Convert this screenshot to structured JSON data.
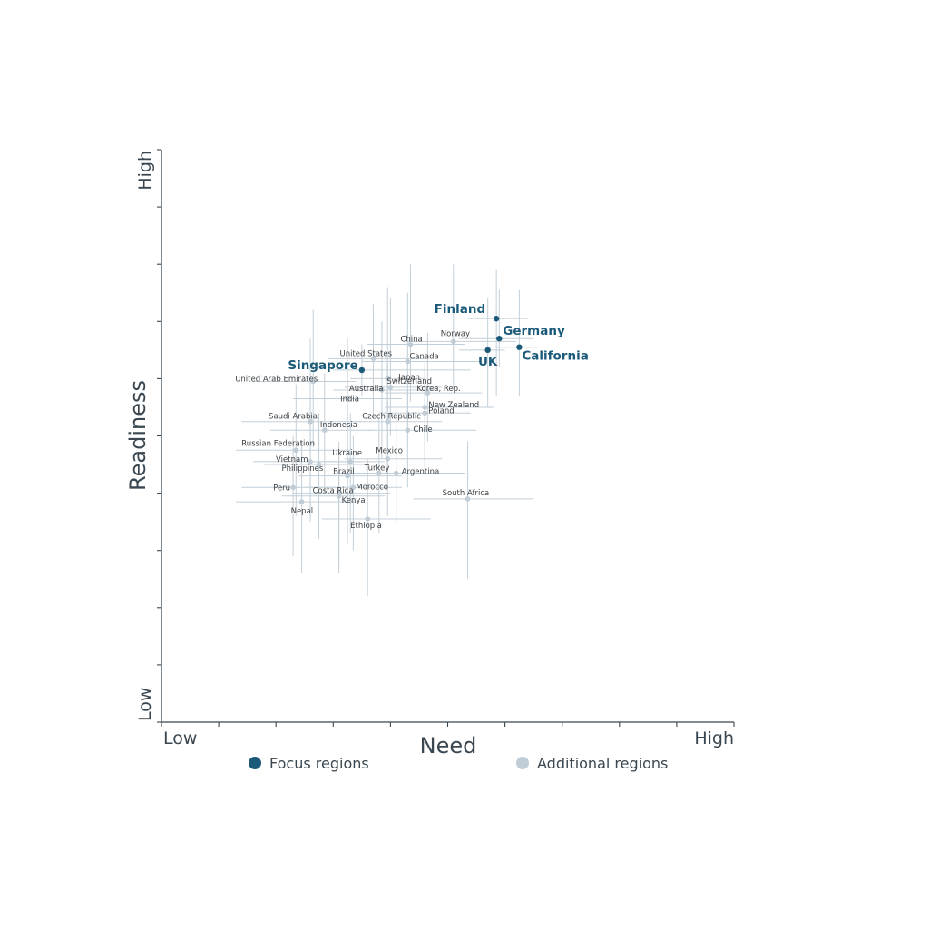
{
  "chart_data": {
    "type": "scatter",
    "title": "",
    "xlabel": "Need",
    "ylabel": "Readiness",
    "x_end_labels": {
      "low": "Low",
      "high": "High"
    },
    "y_end_labels": {
      "low": "Low",
      "high": "High"
    },
    "xlim": [
      0,
      10
    ],
    "ylim": [
      0,
      10
    ],
    "grid": false,
    "legend": {
      "placement": "bottom",
      "entries": [
        {
          "name": "Focus regions",
          "color": "#1b5a78"
        },
        {
          "name": "Additional regions",
          "color": "#c0ccd6"
        }
      ]
    },
    "series": [
      {
        "name": "Focus regions",
        "color": "#1b5a78",
        "points": [
          {
            "label": "Finland",
            "x": 5.85,
            "y": 7.05,
            "x_err": [
              5.35,
              6.4
            ],
            "y_err": [
              5.7,
              7.9
            ]
          },
          {
            "label": "Germany",
            "x": 5.9,
            "y": 6.7,
            "x_err": [
              5.2,
              6.5
            ],
            "y_err": [
              6.2,
              7.55
            ]
          },
          {
            "label": "California",
            "x": 6.25,
            "y": 6.55,
            "x_err": [
              5.85,
              6.6
            ],
            "y_err": [
              5.7,
              7.55
            ]
          },
          {
            "label": "UK",
            "x": 5.7,
            "y": 6.5,
            "x_err": [
              5.2,
              6.0
            ],
            "y_err": [
              5.5,
              7.4
            ]
          },
          {
            "label": "Singapore",
            "x": 3.5,
            "y": 6.15,
            "x_err": [
              3.0,
              5.4
            ],
            "y_err": [
              5.7,
              6.6
            ]
          }
        ]
      },
      {
        "name": "Additional regions",
        "color": "#c0ccd6",
        "points": [
          {
            "label": "Norway",
            "x": 5.1,
            "y": 6.65,
            "x_err": [
              4.3,
              6.2
            ],
            "y_err": [
              5.8,
              8.0
            ]
          },
          {
            "label": "China",
            "x": 4.35,
            "y": 6.6,
            "x_err": [
              3.6,
              5.3
            ],
            "y_err": [
              5.6,
              8.0
            ]
          },
          {
            "label": "Canada",
            "x": 4.3,
            "y": 6.3,
            "x_err": [
              3.5,
              5.6
            ],
            "y_err": [
              5.2,
              7.5
            ]
          },
          {
            "label": "United States",
            "x": 3.7,
            "y": 6.35,
            "x_err": [
              2.9,
              4.6
            ],
            "y_err": [
              5.3,
              7.3
            ]
          },
          {
            "label": "Japan",
            "x": 3.95,
            "y": 6.0,
            "x_err": [
              3.3,
              4.6
            ],
            "y_err": [
              5.2,
              7.6
            ]
          },
          {
            "label": "Switzerland",
            "x": 4.0,
            "y": 5.85,
            "x_err": [
              3.2,
              4.9
            ],
            "y_err": [
              5.0,
              7.4
            ]
          },
          {
            "label": "Australia",
            "x": 3.85,
            "y": 5.8,
            "x_err": [
              3.0,
              4.8
            ],
            "y_err": [
              4.6,
              7.0
            ]
          },
          {
            "label": "Korea, Rep.",
            "x": 4.65,
            "y": 5.75,
            "x_err": [
              3.9,
              5.6
            ],
            "y_err": [
              4.9,
              6.8
            ]
          },
          {
            "label": "United Arab Emirates",
            "x": 2.65,
            "y": 5.95,
            "x_err": [
              1.6,
              3.4
            ],
            "y_err": [
              4.8,
              7.2
            ]
          },
          {
            "label": "India",
            "x": 3.25,
            "y": 5.65,
            "x_err": [
              2.3,
              4.2
            ],
            "y_err": [
              4.3,
              6.7
            ]
          },
          {
            "label": "New Zealand",
            "x": 4.6,
            "y": 5.5,
            "x_err": [
              3.9,
              5.8
            ],
            "y_err": [
              4.5,
              6.3
            ]
          },
          {
            "label": "Poland",
            "x": 4.6,
            "y": 5.4,
            "x_err": [
              3.8,
              5.4
            ],
            "y_err": [
              4.3,
              6.2
            ]
          },
          {
            "label": "Saudi Arabia",
            "x": 2.6,
            "y": 5.25,
            "x_err": [
              1.4,
              3.5
            ],
            "y_err": [
              3.6,
              6.7
            ]
          },
          {
            "label": "Czech Republic",
            "x": 3.95,
            "y": 5.25,
            "x_err": [
              3.3,
              4.9
            ],
            "y_err": [
              4.3,
              6.3
            ]
          },
          {
            "label": "Indonesia",
            "x": 2.85,
            "y": 5.1,
            "x_err": [
              1.9,
              3.7
            ],
            "y_err": [
              4.0,
              6.1
            ]
          },
          {
            "label": "Chile",
            "x": 4.3,
            "y": 5.1,
            "x_err": [
              3.6,
              5.5
            ],
            "y_err": [
              4.1,
              5.8
            ]
          },
          {
            "label": "Russian Federation",
            "x": 2.35,
            "y": 4.75,
            "x_err": [
              1.3,
              3.3
            ],
            "y_err": [
              3.6,
              5.9
            ]
          },
          {
            "label": "Ukraine",
            "x": 3.3,
            "y": 4.55,
            "x_err": [
              2.6,
              3.9
            ],
            "y_err": [
              3.3,
              5.4
            ]
          },
          {
            "label": "Mexico",
            "x": 3.95,
            "y": 4.6,
            "x_err": [
              3.2,
              4.9
            ],
            "y_err": [
              3.6,
              5.6
            ]
          },
          {
            "label": "Vietnam",
            "x": 2.6,
            "y": 4.55,
            "x_err": [
              1.6,
              3.5
            ],
            "y_err": [
              3.5,
              5.6
            ]
          },
          {
            "label": "Philippines",
            "x": 2.75,
            "y": 4.5,
            "x_err": [
              1.8,
              3.6
            ],
            "y_err": [
              3.2,
              5.4
            ]
          },
          {
            "label": "Brazil",
            "x": 3.25,
            "y": 4.3,
            "x_err": [
              2.4,
              4.2
            ],
            "y_err": [
              3.1,
              5.5
            ]
          },
          {
            "label": "Turkey",
            "x": 3.8,
            "y": 4.35,
            "x_err": [
              3.1,
              4.6
            ],
            "y_err": [
              3.3,
              5.3
            ]
          },
          {
            "label": "Argentina",
            "x": 4.1,
            "y": 4.35,
            "x_err": [
              3.3,
              5.3
            ],
            "y_err": [
              3.5,
              5.5
            ]
          },
          {
            "label": "Morocco",
            "x": 3.35,
            "y": 4.1,
            "x_err": [
              2.5,
              4.2
            ],
            "y_err": [
              3.0,
              5.0
            ]
          },
          {
            "label": "Peru",
            "x": 2.3,
            "y": 4.1,
            "x_err": [
              1.4,
              3.2
            ],
            "y_err": [
              2.9,
              5.0
            ]
          },
          {
            "label": "Costa Rica",
            "x": 3.1,
            "y": 4.0,
            "x_err": [
              2.3,
              4.0
            ],
            "y_err": [
              2.8,
              4.9
            ]
          },
          {
            "label": "Kenya",
            "x": 3.1,
            "y": 3.95,
            "x_err": [
              2.1,
              3.9
            ],
            "y_err": [
              2.6,
              4.8
            ]
          },
          {
            "label": "Nepal",
            "x": 2.45,
            "y": 3.85,
            "x_err": [
              1.3,
              3.4
            ],
            "y_err": [
              2.6,
              4.9
            ]
          },
          {
            "label": "South Africa",
            "x": 5.35,
            "y": 3.9,
            "x_err": [
              4.4,
              6.5
            ],
            "y_err": [
              2.5,
              4.9
            ]
          },
          {
            "label": "Ethiopia",
            "x": 3.6,
            "y": 3.55,
            "x_err": [
              2.8,
              4.7
            ],
            "y_err": [
              2.2,
              4.6
            ]
          }
        ]
      }
    ]
  }
}
